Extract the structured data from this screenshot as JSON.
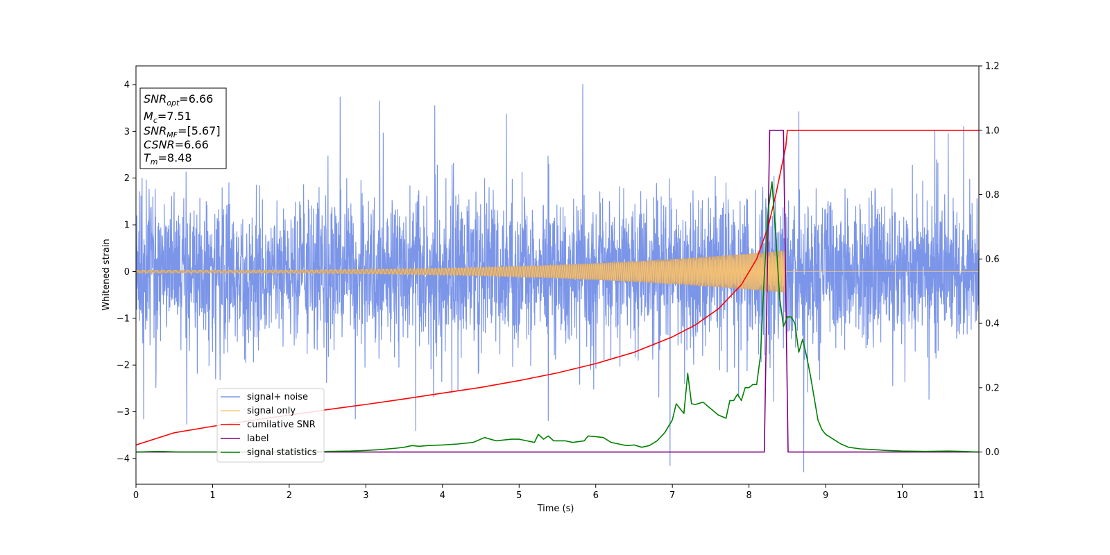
{
  "chart_data": {
    "type": "line",
    "xlabel": "Time (s)",
    "ylabel": "Whitened strain",
    "xlim": [
      0,
      11
    ],
    "ylim_left": [
      -4.55,
      4.4
    ],
    "ylim_right": [
      -0.1,
      1.2
    ],
    "x_ticks": [
      0,
      1,
      2,
      3,
      4,
      5,
      6,
      7,
      8,
      9,
      10,
      11
    ],
    "y_ticks_left": [
      -4,
      -3,
      -2,
      -1,
      0,
      1,
      2,
      3,
      4
    ],
    "y_ticks_right": [
      0.0,
      0.2,
      0.4,
      0.6,
      0.8,
      1.0,
      1.2
    ],
    "grid": false,
    "legend_position": "lower-left",
    "info_box": {
      "snr_opt": {
        "main": "SNR",
        "sub": "opt",
        "rest": "=6.66"
      },
      "mc": {
        "main": "M",
        "sub": "c",
        "rest": "=7.51"
      },
      "snr_mf": {
        "main": "SNR",
        "sub": "MF",
        "rest": "=[5.67]"
      },
      "csnr": {
        "main": "CSNR",
        "sub": "",
        "rest": "=6.66"
      },
      "tm": {
        "main": "T",
        "sub": "m",
        "rest": "=8.48"
      }
    },
    "series": [
      {
        "name": "signal+ noise",
        "axis": "left",
        "color": "#7b95e8",
        "description_kind": "noise",
        "sigma": 0.75,
        "seed": 17,
        "peaks": [
          [
            5.83,
            4.0
          ],
          [
            3.18,
            3.65
          ],
          [
            3.9,
            3.55
          ],
          [
            8.65,
            3.42
          ],
          [
            10.8,
            3.1
          ],
          [
            6.97,
            -4.15
          ],
          [
            0.1,
            -3.15
          ],
          [
            3.65,
            -3.4
          ]
        ]
      },
      {
        "name": "signal only",
        "axis": "left",
        "color": "#ffc870",
        "fill_color": "#c8a27a",
        "chirp": {
          "t_merge": 8.48,
          "amp_start": 0.03,
          "amp_end": 0.45,
          "freq_start": 12,
          "freq_end": 60
        }
      },
      {
        "name": "cumilative SNR",
        "axis": "right",
        "color": "#ff0000",
        "x": [
          0,
          0.5,
          1,
          1.5,
          2,
          2.5,
          3,
          3.5,
          4,
          4.5,
          5,
          5.5,
          6,
          6.5,
          7,
          7.3,
          7.6,
          7.9,
          8.1,
          8.25,
          8.35,
          8.42,
          8.48,
          8.5,
          11
        ],
        "y": [
          0.022,
          0.06,
          0.08,
          0.098,
          0.115,
          0.132,
          0.148,
          0.165,
          0.183,
          0.201,
          0.222,
          0.246,
          0.275,
          0.31,
          0.358,
          0.395,
          0.445,
          0.52,
          0.6,
          0.7,
          0.8,
          0.88,
          0.95,
          1.0,
          1.0
        ]
      },
      {
        "name": "label",
        "axis": "right",
        "color": "#800080",
        "x": [
          0,
          8.2,
          8.27,
          8.45,
          8.51,
          11
        ],
        "y": [
          0.0,
          0.0,
          1.0,
          1.0,
          0.0,
          0.0
        ]
      },
      {
        "name": "signal statistics",
        "axis": "right",
        "color": "#008000",
        "x": [
          0,
          0.3,
          0.6,
          1.0,
          1.5,
          2.0,
          2.5,
          2.8,
          3.0,
          3.2,
          3.4,
          3.5,
          3.6,
          3.7,
          3.8,
          4.0,
          4.2,
          4.4,
          4.55,
          4.7,
          4.9,
          5.0,
          5.1,
          5.2,
          5.25,
          5.32,
          5.38,
          5.45,
          5.6,
          5.7,
          5.85,
          5.9,
          6.0,
          6.1,
          6.2,
          6.3,
          6.4,
          6.5,
          6.6,
          6.7,
          6.8,
          6.9,
          7.0,
          7.05,
          7.1,
          7.15,
          7.2,
          7.25,
          7.3,
          7.4,
          7.5,
          7.6,
          7.7,
          7.75,
          7.8,
          7.85,
          7.9,
          7.95,
          8.0,
          8.05,
          8.1,
          8.15,
          8.2,
          8.25,
          8.3,
          8.35,
          8.4,
          8.45,
          8.5,
          8.55,
          8.6,
          8.65,
          8.7,
          8.75,
          8.8,
          8.85,
          8.9,
          8.95,
          9.0,
          9.1,
          9.2,
          9.3,
          9.45,
          9.6,
          9.8,
          10.0,
          10.3,
          10.6,
          10.8,
          11.0
        ],
        "y": [
          0.0,
          0.002,
          0.0,
          0.0,
          0.0,
          0.0,
          0.002,
          0.003,
          0.005,
          0.008,
          0.012,
          0.015,
          0.02,
          0.018,
          0.02,
          0.022,
          0.025,
          0.03,
          0.045,
          0.035,
          0.04,
          0.04,
          0.035,
          0.03,
          0.055,
          0.04,
          0.05,
          0.035,
          0.035,
          0.03,
          0.035,
          0.05,
          0.048,
          0.045,
          0.03,
          0.025,
          0.02,
          0.022,
          0.015,
          0.02,
          0.035,
          0.06,
          0.1,
          0.15,
          0.135,
          0.12,
          0.245,
          0.15,
          0.148,
          0.155,
          0.135,
          0.115,
          0.105,
          0.16,
          0.16,
          0.18,
          0.16,
          0.2,
          0.2,
          0.21,
          0.21,
          0.3,
          0.55,
          0.75,
          0.84,
          0.67,
          0.48,
          0.39,
          0.42,
          0.42,
          0.4,
          0.31,
          0.35,
          0.3,
          0.24,
          0.17,
          0.1,
          0.07,
          0.055,
          0.04,
          0.025,
          0.015,
          0.01,
          0.008,
          0.005,
          0.003,
          0.002,
          0.003,
          0.002,
          0.0
        ]
      }
    ]
  }
}
